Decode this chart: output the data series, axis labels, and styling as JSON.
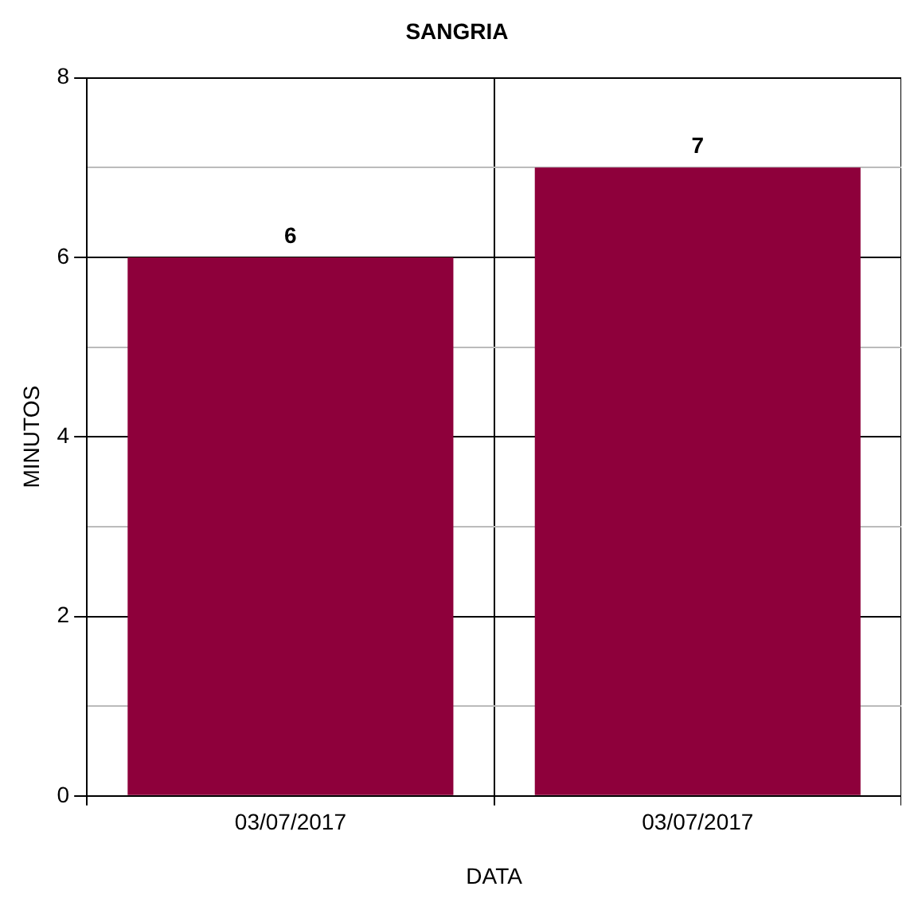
{
  "chart_data": {
    "type": "bar",
    "title": "SANGRIA",
    "xlabel": "DATA",
    "ylabel": "MINUTOS",
    "categories": [
      "03/07/2017",
      "03/07/2017"
    ],
    "values": [
      6,
      7
    ],
    "color": "#8e003b",
    "ylim": [
      0,
      8
    ],
    "yticks": [
      0,
      {
        "value": 1,
        "label": null
      },
      2,
      {
        "value": 3,
        "label": null
      },
      4,
      {
        "value": 5,
        "label": null
      },
      6,
      {
        "value": 7,
        "label": null
      },
      8
    ],
    "grid": true,
    "data_labels": true,
    "legend": false
  }
}
